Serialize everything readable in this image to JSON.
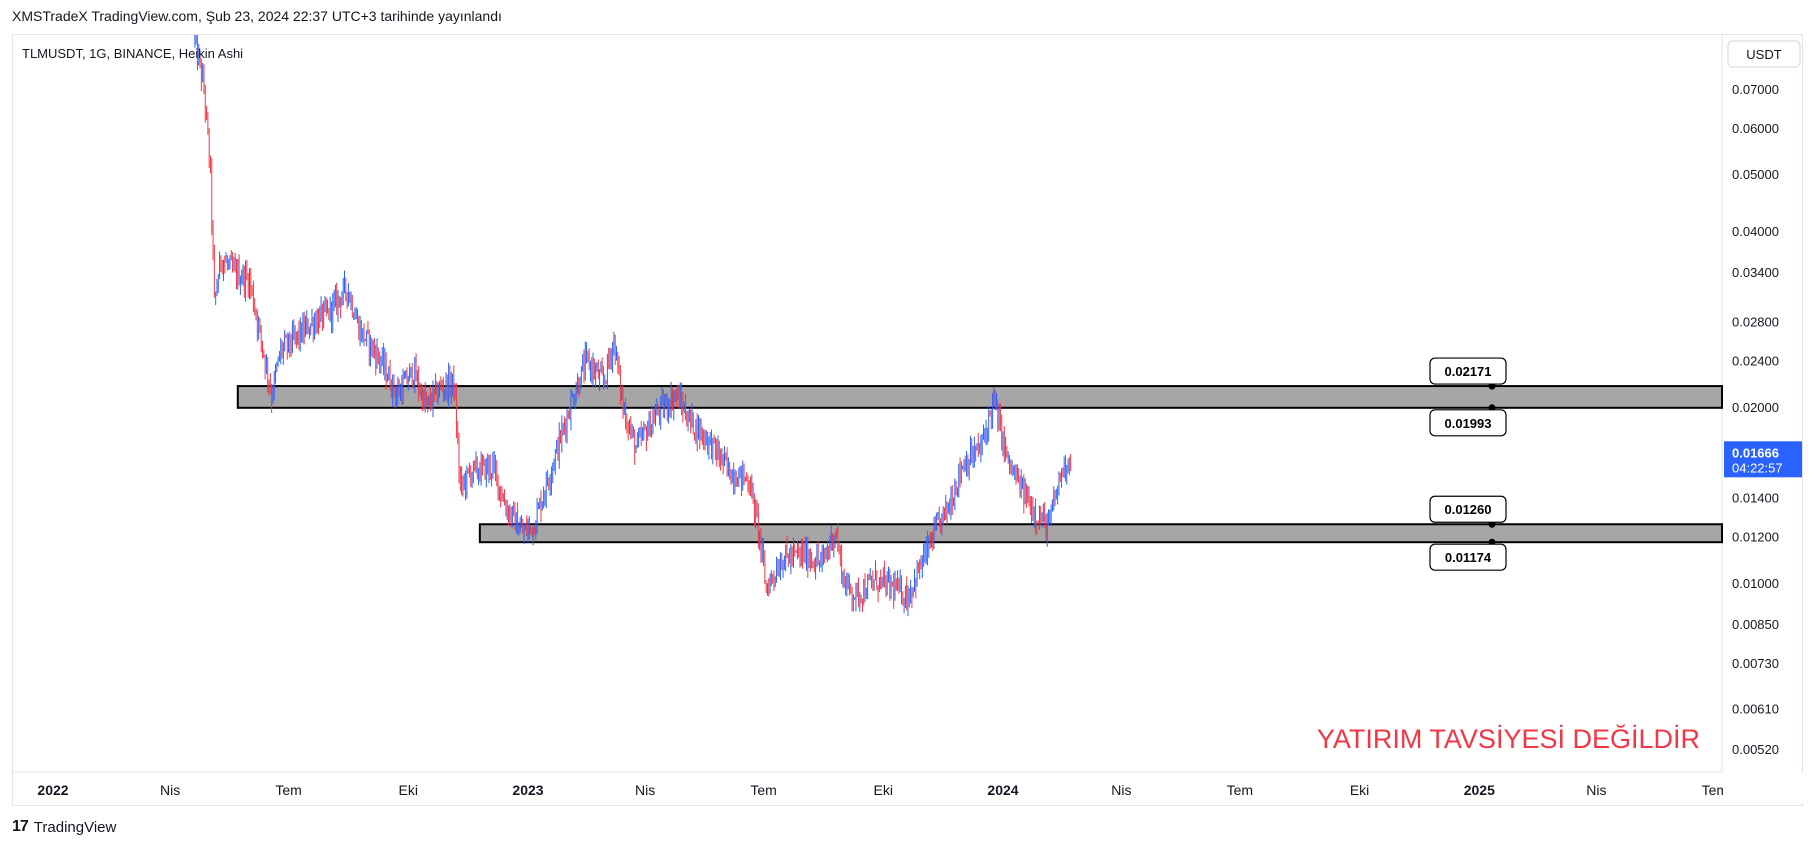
{
  "header": {
    "published": "XMSTradeX TradingView.com, Şub 23, 2024 22:37 UTC+3 tarihinde yayınlandı"
  },
  "footer": {
    "brand": "TradingView",
    "logo_glyph": "17"
  },
  "colors": {
    "up": "#2962ff",
    "down": "#f23645",
    "zone_fill": "#a6a6a6",
    "zone_border": "#000000",
    "price_label_bg": "#2962ff",
    "watermark": "#f23645"
  },
  "chart_data": {
    "type": "candlestick",
    "symbol_label": "TLMUSDT, 1G, BINANCE, Heikin Ashi",
    "currency": "USDT",
    "y_scale": "log",
    "ylim": [
      0.00475,
      0.0865
    ],
    "y_ticks": [
      "0.07000",
      "0.06000",
      "0.05000",
      "0.04000",
      "0.03400",
      "0.02800",
      "0.02400",
      "0.02000",
      "0.01400",
      "0.01200",
      "0.01000",
      "0.00850",
      "0.00730",
      "0.00610",
      "0.00520"
    ],
    "x_ticks": [
      {
        "label": "2022",
        "bold": true
      },
      {
        "label": "Nis",
        "bold": false
      },
      {
        "label": "Tem",
        "bold": false
      },
      {
        "label": "Eki",
        "bold": false
      },
      {
        "label": "2023",
        "bold": true
      },
      {
        "label": "Nis",
        "bold": false
      },
      {
        "label": "Tem",
        "bold": false
      },
      {
        "label": "Eki",
        "bold": false
      },
      {
        "label": "2024",
        "bold": true
      },
      {
        "label": "Nis",
        "bold": false
      },
      {
        "label": "Tem",
        "bold": false
      },
      {
        "label": "Eki",
        "bold": false
      },
      {
        "label": "2025",
        "bold": true
      },
      {
        "label": "Nis",
        "bold": false
      },
      {
        "label": "Tem",
        "bold": false
      }
    ],
    "last_price": "0.01666",
    "countdown": "04:22:57",
    "zones": [
      {
        "top": 0.02171,
        "bottom": 0.01993,
        "top_label": "0.02171",
        "bottom_label": "0.01993",
        "start": "2022-05-23"
      },
      {
        "top": 0.0126,
        "bottom": 0.01174,
        "top_label": "0.01260",
        "bottom_label": "0.01174",
        "start": "2022-11-25"
      }
    ],
    "annotation": "YATIRIM TAVSİYESİ DEĞİLDİR",
    "price_path": [
      {
        "date": "2022-04-20",
        "price": 0.085
      },
      {
        "date": "2022-04-27",
        "price": 0.07
      },
      {
        "date": "2022-05-02",
        "price": 0.05
      },
      {
        "date": "2022-05-05",
        "price": 0.03
      },
      {
        "date": "2022-05-10",
        "price": 0.036
      },
      {
        "date": "2022-05-20",
        "price": 0.034
      },
      {
        "date": "2022-06-01",
        "price": 0.033
      },
      {
        "date": "2022-06-10",
        "price": 0.026
      },
      {
        "date": "2022-06-18",
        "price": 0.021
      },
      {
        "date": "2022-06-25",
        "price": 0.025
      },
      {
        "date": "2022-07-05",
        "price": 0.026
      },
      {
        "date": "2022-07-20",
        "price": 0.028
      },
      {
        "date": "2022-08-01",
        "price": 0.029
      },
      {
        "date": "2022-08-15",
        "price": 0.032
      },
      {
        "date": "2022-08-25",
        "price": 0.027
      },
      {
        "date": "2022-09-10",
        "price": 0.024
      },
      {
        "date": "2022-09-22",
        "price": 0.021
      },
      {
        "date": "2022-10-05",
        "price": 0.023
      },
      {
        "date": "2022-10-15",
        "price": 0.02
      },
      {
        "date": "2022-10-25",
        "price": 0.0215
      },
      {
        "date": "2022-11-05",
        "price": 0.022
      },
      {
        "date": "2022-11-10",
        "price": 0.0145
      },
      {
        "date": "2022-11-18",
        "price": 0.0155
      },
      {
        "date": "2022-12-05",
        "price": 0.0158
      },
      {
        "date": "2022-12-15",
        "price": 0.0135
      },
      {
        "date": "2022-12-28",
        "price": 0.0122
      },
      {
        "date": "2023-01-05",
        "price": 0.0125
      },
      {
        "date": "2023-01-20",
        "price": 0.016
      },
      {
        "date": "2023-02-05",
        "price": 0.021
      },
      {
        "date": "2023-02-15",
        "price": 0.024
      },
      {
        "date": "2023-02-28",
        "price": 0.022
      },
      {
        "date": "2023-03-08",
        "price": 0.026
      },
      {
        "date": "2023-03-15",
        "price": 0.02
      },
      {
        "date": "2023-03-25",
        "price": 0.017
      },
      {
        "date": "2023-04-10",
        "price": 0.0195
      },
      {
        "date": "2023-04-25",
        "price": 0.021
      },
      {
        "date": "2023-05-05",
        "price": 0.019
      },
      {
        "date": "2023-05-20",
        "price": 0.0175
      },
      {
        "date": "2023-06-05",
        "price": 0.0155
      },
      {
        "date": "2023-06-20",
        "price": 0.015
      },
      {
        "date": "2023-06-28",
        "price": 0.012
      },
      {
        "date": "2023-07-03",
        "price": 0.0098
      },
      {
        "date": "2023-07-15",
        "price": 0.011
      },
      {
        "date": "2023-08-01",
        "price": 0.0112
      },
      {
        "date": "2023-08-15",
        "price": 0.0108
      },
      {
        "date": "2023-08-25",
        "price": 0.0123
      },
      {
        "date": "2023-09-01",
        "price": 0.01
      },
      {
        "date": "2023-09-10",
        "price": 0.0095
      },
      {
        "date": "2023-09-25",
        "price": 0.0101
      },
      {
        "date": "2023-10-10",
        "price": 0.0098
      },
      {
        "date": "2023-10-20",
        "price": 0.0095
      },
      {
        "date": "2023-11-01",
        "price": 0.011
      },
      {
        "date": "2023-11-12",
        "price": 0.0125
      },
      {
        "date": "2023-11-20",
        "price": 0.0135
      },
      {
        "date": "2023-12-01",
        "price": 0.016
      },
      {
        "date": "2023-12-15",
        "price": 0.017
      },
      {
        "date": "2023-12-25",
        "price": 0.0205
      },
      {
        "date": "2024-01-05",
        "price": 0.016
      },
      {
        "date": "2024-01-15",
        "price": 0.0145
      },
      {
        "date": "2024-01-28",
        "price": 0.013
      },
      {
        "date": "2024-02-05",
        "price": 0.0125
      },
      {
        "date": "2024-02-15",
        "price": 0.0155
      },
      {
        "date": "2024-02-23",
        "price": 0.01666
      }
    ]
  }
}
